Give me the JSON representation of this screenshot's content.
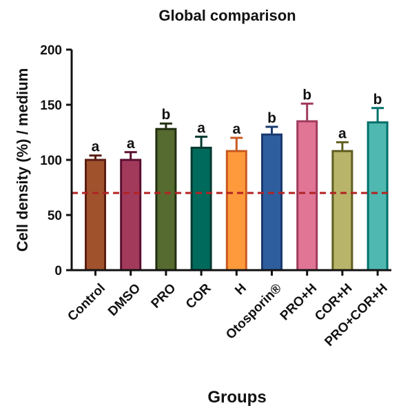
{
  "chart_data": {
    "type": "bar",
    "title": "Global comparison",
    "xlabel": "Groups",
    "ylabel": "Cell density (%) / medium",
    "ylim": [
      0,
      200
    ],
    "yticks": [
      0,
      50,
      100,
      150,
      200
    ],
    "categories": [
      "Control",
      "DMSO",
      "PRO",
      "COR",
      "H",
      "Otosporin®",
      "PRO+H",
      "COR+H",
      "PRO+COR+H"
    ],
    "values": [
      100,
      100,
      128,
      111,
      108,
      123,
      135,
      108,
      134
    ],
    "errors": [
      4,
      7,
      5,
      10,
      12,
      7,
      16,
      8,
      13
    ],
    "significance": [
      "a",
      "a",
      "b",
      "a",
      "a",
      "b",
      "b",
      "a",
      "b"
    ],
    "reference_line": 70,
    "reference_line_color": "#b22222",
    "fill_colors": [
      "#a0522d",
      "#a23a5c",
      "#556b2f",
      "#006a5c",
      "#ff9a3c",
      "#2e5e9e",
      "#e07596",
      "#b8b46a",
      "#4fb8b0"
    ],
    "edge_colors": [
      "#5a1e12",
      "#5a1030",
      "#223010",
      "#003a30",
      "#c85a20",
      "#1a3a70",
      "#a03a5c",
      "#5f5e20",
      "#00706a"
    ],
    "grid": false,
    "legend": "none"
  }
}
